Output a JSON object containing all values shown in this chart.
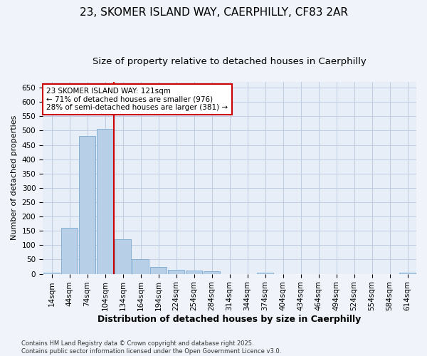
{
  "title": "23, SKOMER ISLAND WAY, CAERPHILLY, CF83 2AR",
  "subtitle": "Size of property relative to detached houses in Caerphilly",
  "xlabel": "Distribution of detached houses by size in Caerphilly",
  "ylabel": "Number of detached properties",
  "categories": [
    "14sqm",
    "44sqm",
    "74sqm",
    "104sqm",
    "134sqm",
    "164sqm",
    "194sqm",
    "224sqm",
    "254sqm",
    "284sqm",
    "314sqm",
    "344sqm",
    "374sqm",
    "404sqm",
    "434sqm",
    "464sqm",
    "494sqm",
    "524sqm",
    "554sqm",
    "584sqm",
    "614sqm"
  ],
  "values": [
    3,
    160,
    481,
    507,
    121,
    50,
    23,
    13,
    11,
    8,
    0,
    0,
    4,
    0,
    0,
    0,
    0,
    0,
    0,
    0,
    4
  ],
  "bar_color": "#b8cfe8",
  "bar_edge_color": "#7aaad0",
  "vline_color": "#cc0000",
  "annotation_text": "23 SKOMER ISLAND WAY: 121sqm\n← 71% of detached houses are smaller (976)\n28% of semi-detached houses are larger (381) →",
  "annotation_box_color": "#ffffff",
  "annotation_box_edge": "#cc0000",
  "ylim": [
    0,
    670
  ],
  "yticks": [
    0,
    50,
    100,
    150,
    200,
    250,
    300,
    350,
    400,
    450,
    500,
    550,
    600,
    650
  ],
  "background_color": "#f0f4fa",
  "plot_bg_color": "#e8eef8",
  "grid_color": "#c0cce0",
  "footnote": "Contains HM Land Registry data © Crown copyright and database right 2025.\nContains public sector information licensed under the Open Government Licence v3.0.",
  "title_fontsize": 11,
  "subtitle_fontsize": 9.5,
  "xlabel_fontsize": 9,
  "ylabel_fontsize": 8,
  "tick_fontsize": 7.5,
  "annot_fontsize": 7.5,
  "footnote_fontsize": 6
}
